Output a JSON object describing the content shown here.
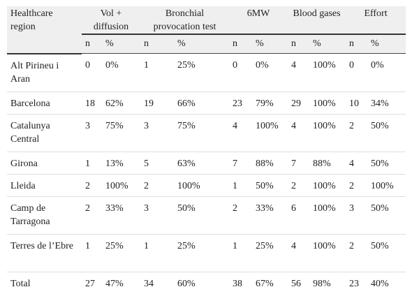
{
  "table": {
    "header": {
      "region": "Healthcare region",
      "groups": [
        "Vol + diffusion",
        "Bronchial provocation test",
        "6MW",
        "Blood gases",
        "Effort"
      ],
      "n": "n",
      "pct": "%"
    },
    "rows": [
      {
        "region": "Alt Pirineu i Aran",
        "cells": [
          "0",
          "0%",
          "1",
          "25%",
          "0",
          "0%",
          "4",
          "100%",
          "0",
          "0%"
        ]
      },
      {
        "region": "Barcelona",
        "cells": [
          "18",
          "62%",
          "19",
          "66%",
          "23",
          "79%",
          "29",
          "100%",
          "10",
          "34%"
        ]
      },
      {
        "region": "Catalunya Central",
        "cells": [
          "3",
          "75%",
          "3",
          "75%",
          "4",
          "100%",
          "4",
          "100%",
          "2",
          "50%"
        ]
      },
      {
        "region": "Girona",
        "cells": [
          "1",
          "13%",
          "5",
          "63%",
          "7",
          "88%",
          "7",
          "88%",
          "4",
          "50%"
        ]
      },
      {
        "region": "Lleida",
        "cells": [
          "2",
          "100%",
          "2",
          "100%",
          "1",
          "50%",
          "2",
          "100%",
          "2",
          "100%"
        ]
      },
      {
        "region": "Camp de Tarragona",
        "cells": [
          "2",
          "33%",
          "3",
          "50%",
          "2",
          "33%",
          "6",
          "100%",
          "3",
          "50%"
        ]
      },
      {
        "region": "Terres de l’Ebre",
        "cells": [
          "1",
          "25%",
          "1",
          "25%",
          "1",
          "25%",
          "4",
          "100%",
          "2",
          "50%"
        ]
      },
      {
        "region": "Total",
        "cells": [
          "27",
          "47%",
          "34",
          "60%",
          "38",
          "67%",
          "56",
          "98%",
          "23",
          "40%"
        ]
      }
    ]
  }
}
